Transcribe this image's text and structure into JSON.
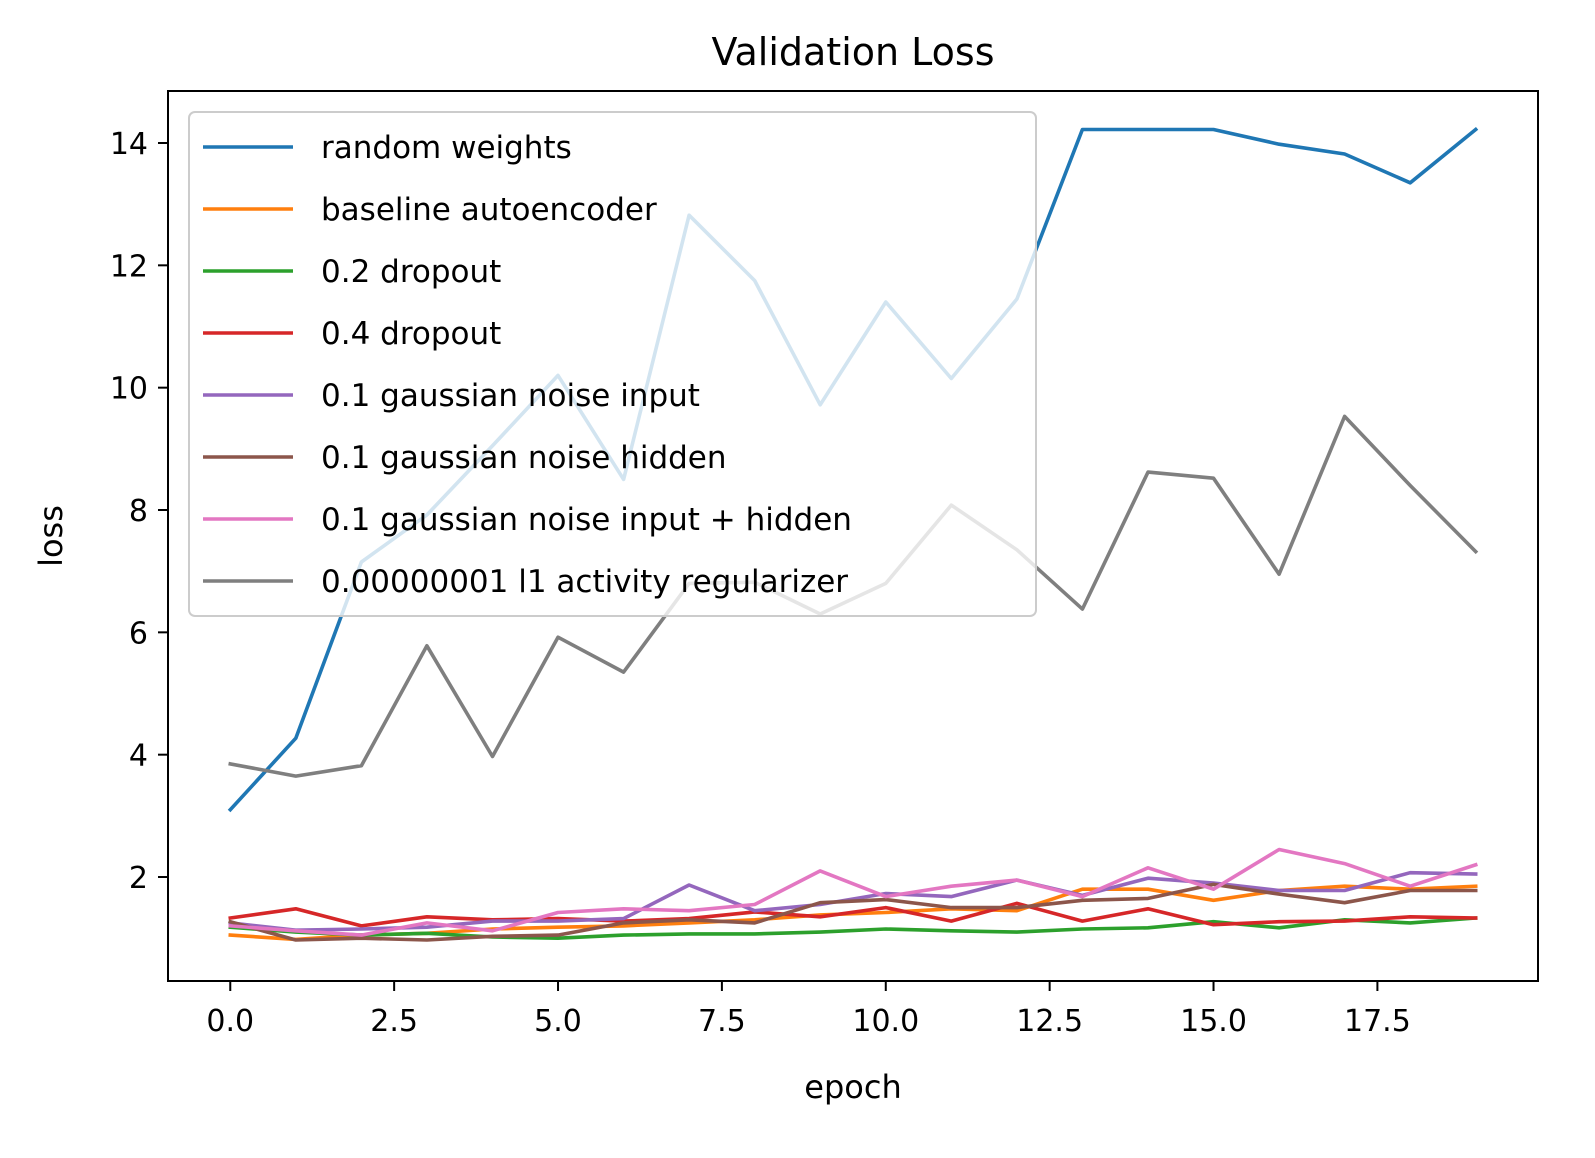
{
  "chart_data": {
    "type": "line",
    "title": "Validation Loss",
    "xlabel": "epoch",
    "ylabel": "loss",
    "xlim": [
      -0.95,
      19.95
    ],
    "ylim": [
      0.3,
      14.85
    ],
    "xticks": [
      "0.0",
      "2.5",
      "5.0",
      "7.5",
      "10.0",
      "12.5",
      "15.0",
      "17.5"
    ],
    "xtick_values": [
      0,
      2.5,
      5,
      7.5,
      10,
      12.5,
      15,
      17.5
    ],
    "yticks": [
      "2",
      "4",
      "6",
      "8",
      "10",
      "12",
      "14"
    ],
    "ytick_values": [
      2,
      4,
      6,
      8,
      10,
      12,
      14
    ],
    "grid": false,
    "legend_position": "upper-left",
    "x": [
      0,
      1,
      2,
      3,
      4,
      5,
      6,
      7,
      8,
      9,
      10,
      11,
      12,
      13,
      14,
      15,
      16,
      17,
      18,
      19
    ],
    "series": [
      {
        "name": "random weights",
        "color": "#1f77b4",
        "values": [
          3.1,
          4.27,
          7.15,
          7.92,
          9.05,
          10.2,
          8.5,
          12.82,
          11.75,
          9.72,
          11.4,
          10.15,
          11.45,
          14.22,
          14.22,
          14.22,
          13.98,
          13.82,
          13.35,
          14.22
        ]
      },
      {
        "name": "baseline autoencoder",
        "color": "#ff7f0e",
        "values": [
          1.05,
          0.98,
          1.05,
          1.08,
          1.15,
          1.18,
          1.2,
          1.25,
          1.3,
          1.38,
          1.42,
          1.48,
          1.45,
          1.8,
          1.8,
          1.62,
          1.78,
          1.85,
          1.8,
          1.85
        ]
      },
      {
        "name": "0.2 dropout",
        "color": "#2ca02c",
        "values": [
          1.18,
          1.1,
          1.05,
          1.08,
          1.02,
          1.0,
          1.05,
          1.07,
          1.07,
          1.1,
          1.15,
          1.12,
          1.1,
          1.15,
          1.17,
          1.27,
          1.17,
          1.3,
          1.25,
          1.33
        ]
      },
      {
        "name": "0.4 dropout",
        "color": "#d62728",
        "values": [
          1.33,
          1.48,
          1.2,
          1.35,
          1.3,
          1.32,
          1.28,
          1.32,
          1.43,
          1.35,
          1.5,
          1.28,
          1.57,
          1.28,
          1.48,
          1.22,
          1.27,
          1.28,
          1.35,
          1.33
        ]
      },
      {
        "name": "0.1 gaussian noise input",
        "color": "#9467bd",
        "values": [
          1.25,
          1.13,
          1.15,
          1.18,
          1.28,
          1.28,
          1.32,
          1.87,
          1.45,
          1.55,
          1.73,
          1.68,
          1.95,
          1.7,
          1.98,
          1.9,
          1.78,
          1.78,
          2.07,
          2.05
        ]
      },
      {
        "name": "0.1 gaussian noise hidden",
        "color": "#8c564b",
        "values": [
          1.27,
          0.97,
          1.0,
          0.97,
          1.03,
          1.05,
          1.25,
          1.3,
          1.25,
          1.58,
          1.63,
          1.5,
          1.5,
          1.62,
          1.65,
          1.88,
          1.72,
          1.58,
          1.78,
          1.78
        ]
      },
      {
        "name": "0.1 gaussian noise input + hidden",
        "color": "#e377c2",
        "values": [
          1.2,
          1.12,
          1.05,
          1.25,
          1.12,
          1.42,
          1.48,
          1.45,
          1.55,
          2.1,
          1.68,
          1.85,
          1.95,
          1.68,
          2.15,
          1.8,
          2.45,
          2.22,
          1.85,
          2.2
        ]
      },
      {
        "name": "0.00000001 l1 activity regularizer",
        "color": "#7f7f7f",
        "values": [
          3.85,
          3.65,
          3.82,
          5.78,
          3.97,
          5.92,
          5.35,
          6.8,
          6.82,
          6.3,
          6.8,
          8.08,
          7.35,
          6.38,
          8.62,
          8.52,
          6.95,
          9.53,
          8.4,
          7.32
        ]
      }
    ]
  }
}
